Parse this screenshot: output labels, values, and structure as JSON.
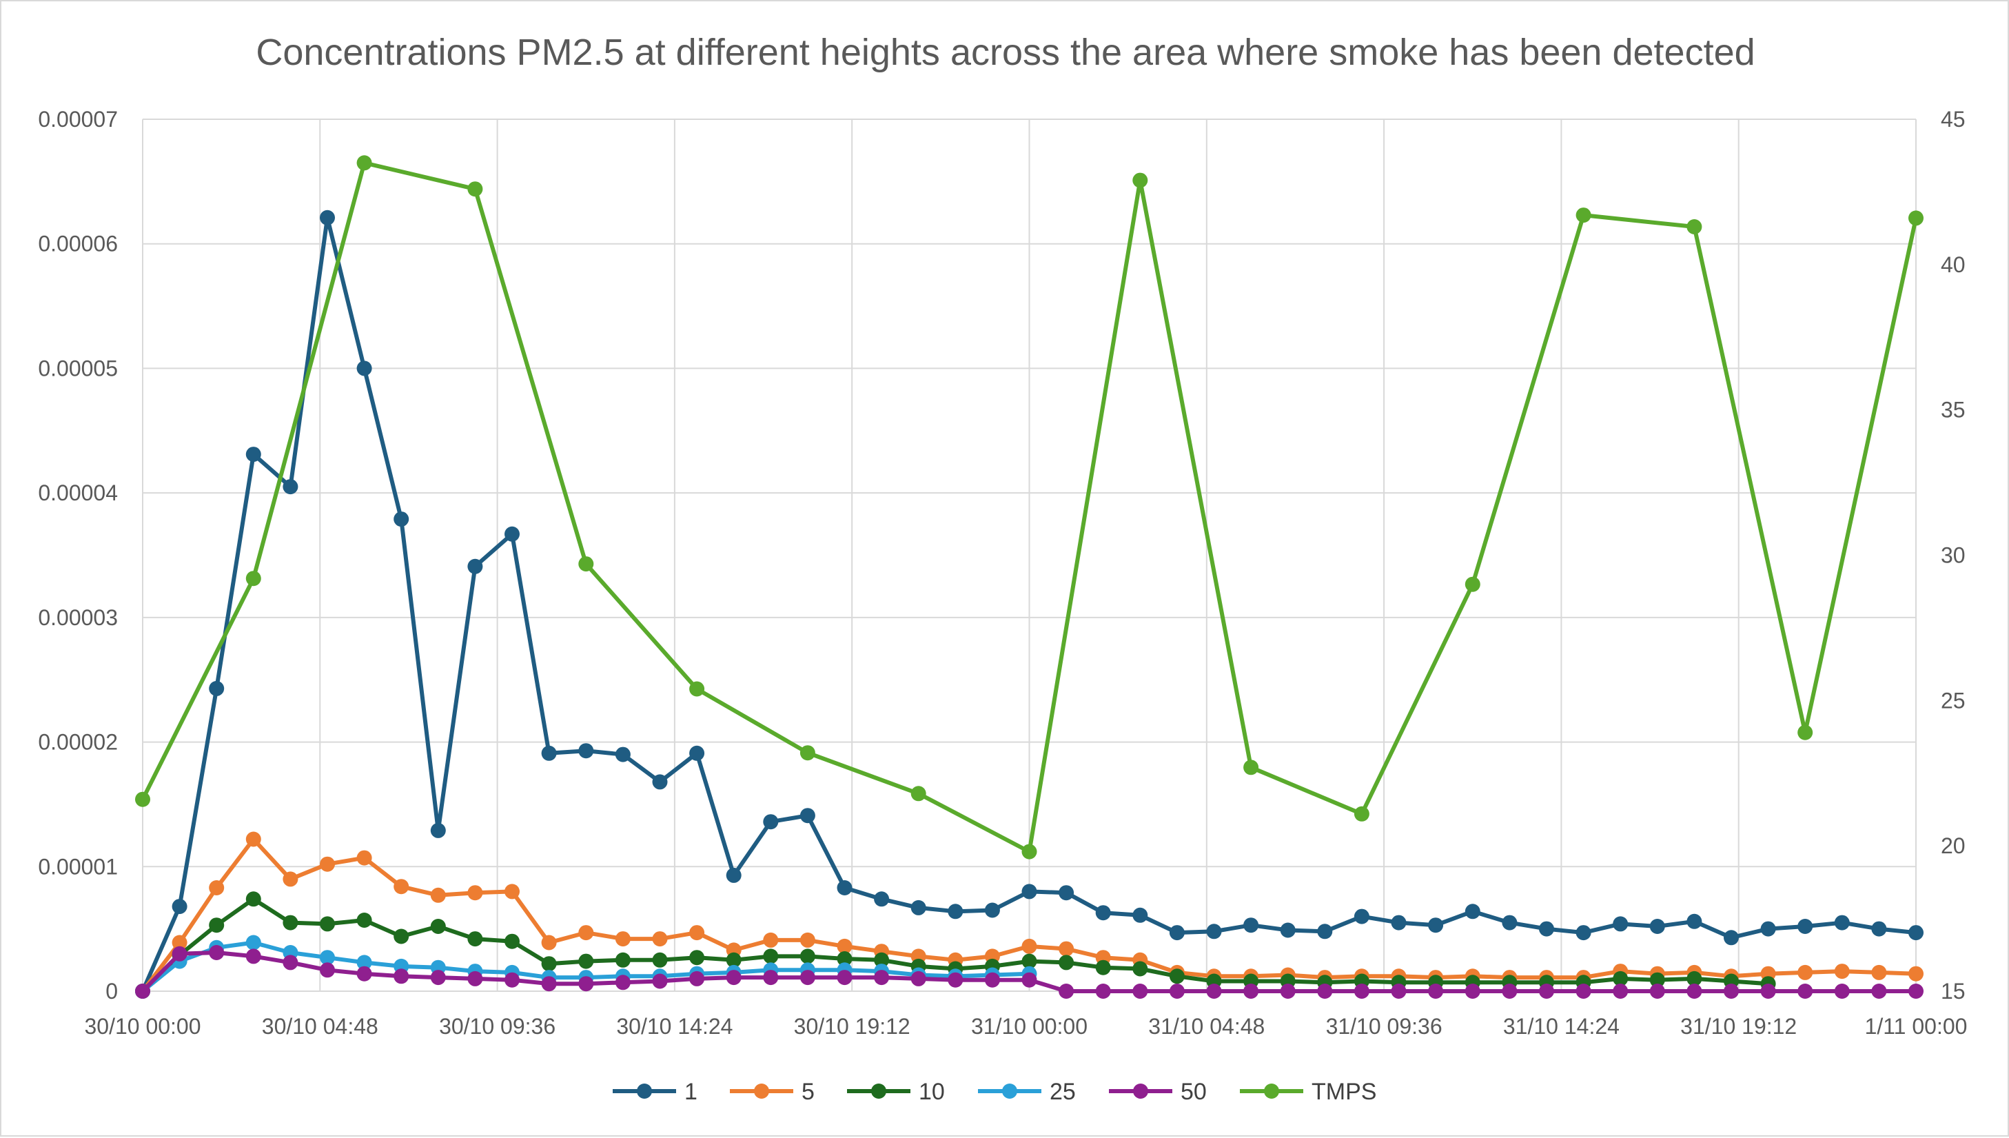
{
  "chart_data": {
    "type": "line",
    "title": "Concentrations PM2.5 at different heights across the area where smoke has been detected",
    "xlabel": "",
    "ylabel": "",
    "y2label": "",
    "x_ticks": [
      "30/10 00:00",
      "30/10 04:48",
      "30/10 09:36",
      "30/10 14:24",
      "30/10 19:12",
      "31/10 00:00",
      "31/10 04:48",
      "31/10 09:36",
      "31/10 14:24",
      "31/10 19:12",
      "1/11 00:00"
    ],
    "xlim_hours": [
      0,
      48
    ],
    "ylim": [
      0,
      7e-05
    ],
    "y_ticks": [
      "0",
      "0.00001",
      "0.00002",
      "0.00003",
      "0.00004",
      "0.00005",
      "0.00006",
      "0.00007"
    ],
    "y2lim": [
      15,
      45
    ],
    "y2_ticks": [
      "15",
      "20",
      "25",
      "30",
      "35",
      "40",
      "45"
    ],
    "grid": true,
    "legend_position": "bottom",
    "series": [
      {
        "name": "1",
        "color": "#1f5c82",
        "axis": "left",
        "x_hours": [
          0,
          1,
          2,
          3,
          4,
          5,
          6,
          7,
          8,
          9,
          10,
          11,
          12,
          13,
          14,
          15,
          16,
          17,
          18,
          19,
          20,
          21,
          22,
          23,
          24,
          25,
          26,
          27,
          28,
          29,
          30,
          31,
          32,
          33,
          34,
          35,
          36,
          37,
          38,
          39,
          40,
          41,
          42,
          43,
          44,
          45,
          46,
          47,
          48
        ],
        "values": [
          0,
          6.8e-06,
          2.43e-05,
          4.31e-05,
          4.05e-05,
          6.21e-05,
          5e-05,
          3.79e-05,
          1.29e-05,
          3.41e-05,
          3.67e-05,
          1.91e-05,
          1.93e-05,
          1.9e-05,
          1.68e-05,
          1.91e-05,
          9.3e-06,
          1.36e-05,
          1.41e-05,
          8.3e-06,
          7.4e-06,
          6.7e-06,
          6.4e-06,
          6.5e-06,
          8e-06,
          7.9e-06,
          6.3e-06,
          6.1e-06,
          4.7e-06,
          4.8e-06,
          5.3e-06,
          4.9e-06,
          4.8e-06,
          6e-06,
          5.5e-06,
          5.3e-06,
          6.4e-06,
          5.5e-06,
          5e-06,
          4.7e-06,
          5.4e-06,
          5.2e-06,
          5.6e-06,
          4.3e-06,
          5e-06,
          5.2e-06,
          5.5e-06,
          5e-06,
          4.7e-06
        ]
      },
      {
        "name": "5",
        "color": "#ed7d31",
        "axis": "left",
        "x_hours": [
          0,
          1,
          2,
          3,
          4,
          5,
          6,
          7,
          8,
          9,
          10,
          11,
          12,
          13,
          14,
          15,
          16,
          17,
          18,
          19,
          20,
          21,
          22,
          23,
          24,
          25,
          26,
          27,
          28,
          29,
          30,
          31,
          32,
          33,
          34,
          35,
          36,
          37,
          38,
          39,
          40,
          41,
          42,
          43,
          44,
          45,
          46,
          47,
          48
        ],
        "values": [
          0,
          3.9e-06,
          8.3e-06,
          1.22e-05,
          9e-06,
          1.02e-05,
          1.07e-05,
          8.4e-06,
          7.7e-06,
          7.9e-06,
          8e-06,
          3.9e-06,
          4.7e-06,
          4.2e-06,
          4.2e-06,
          4.7e-06,
          3.3e-06,
          4.1e-06,
          4.1e-06,
          3.6e-06,
          3.2e-06,
          2.8e-06,
          2.5e-06,
          2.8e-06,
          3.6e-06,
          3.4e-06,
          2.7e-06,
          2.5e-06,
          1.5e-06,
          1.2e-06,
          1.2e-06,
          1.3e-06,
          1.1e-06,
          1.2e-06,
          1.2e-06,
          1.1e-06,
          1.2e-06,
          1.1e-06,
          1.1e-06,
          1.1e-06,
          1.6e-06,
          1.4e-06,
          1.5e-06,
          1.2e-06,
          1.4e-06,
          1.5e-06,
          1.6e-06,
          1.5e-06,
          1.4e-06
        ]
      },
      {
        "name": "10",
        "color": "#1e6b1e",
        "axis": "left",
        "x_hours": [
          0,
          1,
          2,
          3,
          4,
          5,
          6,
          7,
          8,
          9,
          10,
          11,
          12,
          13,
          14,
          15,
          16,
          17,
          18,
          19,
          20,
          21,
          22,
          23,
          24,
          25,
          26,
          27,
          28,
          29,
          30,
          31,
          32,
          33,
          34,
          35,
          36,
          37,
          38,
          39,
          40,
          41,
          42,
          43,
          44
        ],
        "values": [
          0,
          2.9e-06,
          5.3e-06,
          7.4e-06,
          5.5e-06,
          5.4e-06,
          5.7e-06,
          4.4e-06,
          5.2e-06,
          4.2e-06,
          4e-06,
          2.2e-06,
          2.4e-06,
          2.5e-06,
          2.5e-06,
          2.7e-06,
          2.5e-06,
          2.8e-06,
          2.8e-06,
          2.6e-06,
          2.5e-06,
          2e-06,
          1.8e-06,
          2e-06,
          2.4e-06,
          2.3e-06,
          1.9e-06,
          1.8e-06,
          1.2e-06,
          8e-07,
          8e-07,
          8e-07,
          7e-07,
          8e-07,
          7e-07,
          7e-07,
          7e-07,
          7e-07,
          7e-07,
          7e-07,
          1e-06,
          9e-07,
          1e-06,
          8e-07,
          6e-07
        ]
      },
      {
        "name": "25",
        "color": "#2aa0d8",
        "axis": "left",
        "x_hours": [
          0,
          1,
          2,
          3,
          4,
          5,
          6,
          7,
          8,
          9,
          10,
          11,
          12,
          13,
          14,
          15,
          16,
          17,
          18,
          19,
          20,
          21,
          22,
          23,
          24
        ],
        "values": [
          0,
          2.4e-06,
          3.5e-06,
          3.9e-06,
          3.1e-06,
          2.7e-06,
          2.3e-06,
          2e-06,
          1.9e-06,
          1.6e-06,
          1.5e-06,
          1.1e-06,
          1.1e-06,
          1.2e-06,
          1.2e-06,
          1.4e-06,
          1.5e-06,
          1.7e-06,
          1.7e-06,
          1.7e-06,
          1.6e-06,
          1.3e-06,
          1.2e-06,
          1.3e-06,
          1.4e-06
        ]
      },
      {
        "name": "50",
        "color": "#8f1f8f",
        "axis": "left",
        "x_hours": [
          0,
          1,
          2,
          3,
          4,
          5,
          6,
          7,
          8,
          9,
          10,
          11,
          12,
          13,
          14,
          15,
          16,
          17,
          18,
          19,
          20,
          21,
          22,
          23,
          24,
          25,
          26,
          27,
          28,
          29,
          30,
          31,
          32,
          33,
          34,
          35,
          36,
          37,
          38,
          39,
          40,
          41,
          42,
          43,
          44,
          45,
          46,
          47,
          48
        ],
        "values": [
          0,
          3e-06,
          3.1e-06,
          2.8e-06,
          2.3e-06,
          1.7e-06,
          1.4e-06,
          1.2e-06,
          1.1e-06,
          1e-06,
          9e-07,
          6e-07,
          6e-07,
          7e-07,
          8e-07,
          1e-06,
          1.1e-06,
          1.1e-06,
          1.1e-06,
          1.1e-06,
          1.1e-06,
          1e-06,
          9e-07,
          9e-07,
          9e-07,
          0,
          0,
          0,
          0,
          0,
          0,
          0,
          0,
          0,
          0,
          0,
          0,
          0,
          0,
          0,
          0,
          0,
          0,
          0,
          0,
          0,
          0,
          0,
          0
        ]
      },
      {
        "name": "TMPS",
        "color": "#5aaa2c",
        "axis": "right",
        "x_hours": [
          0,
          3,
          6,
          9,
          12,
          15,
          18,
          21,
          24,
          27,
          30,
          33,
          36,
          39,
          42,
          45,
          48
        ],
        "values": [
          21.6,
          29.2,
          43.5,
          42.6,
          29.7,
          25.4,
          23.2,
          21.8,
          19.8,
          42.9,
          22.7,
          21.1,
          29.0,
          41.7,
          41.3,
          23.9,
          41.6
        ]
      }
    ]
  }
}
